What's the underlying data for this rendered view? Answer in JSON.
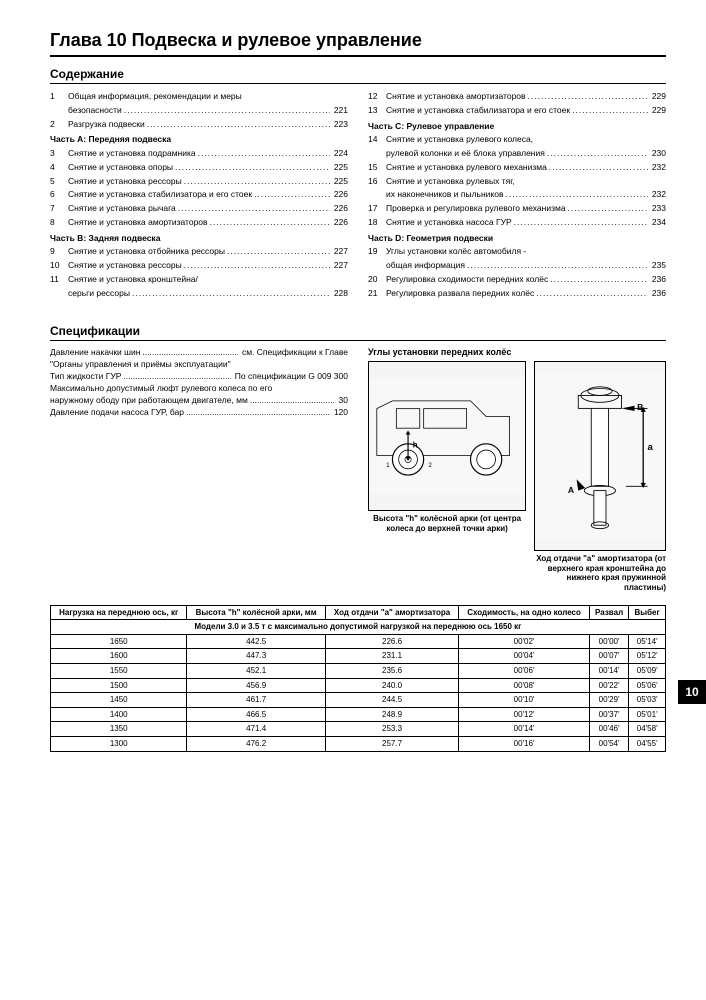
{
  "title": "Глава 10 Подвеска и рулевое управление",
  "contents_heading": "Содержание",
  "spec_heading": "Спецификации",
  "chapter_tab": "10",
  "toc_left": [
    {
      "n": "1",
      "t": "Общая информация, рекомендации и меры",
      "noline": true
    },
    {
      "n": "",
      "t": "безопасности",
      "p": "221"
    },
    {
      "n": "2",
      "t": "Разгрузка подвески",
      "p": "223"
    },
    {
      "part": "Часть A: Передняя подвеска"
    },
    {
      "n": "3",
      "t": "Снятие и установка подрамника",
      "p": "224"
    },
    {
      "n": "4",
      "t": "Снятие и установка опоры",
      "p": "225"
    },
    {
      "n": "5",
      "t": "Снятие и установка рессоры",
      "p": "225"
    },
    {
      "n": "6",
      "t": "Снятие и установка стабилизатора и его стоек",
      "p": "226"
    },
    {
      "n": "7",
      "t": "Снятие и установка рычага",
      "p": "226"
    },
    {
      "n": "8",
      "t": "Снятие и установка амортизаторов",
      "p": "226"
    },
    {
      "part": "Часть B: Задняя подвеска"
    },
    {
      "n": "9",
      "t": "Снятие и установка отбойника рессоры",
      "p": "227"
    },
    {
      "n": "10",
      "t": "Снятие и установка рессоры",
      "p": "227"
    },
    {
      "n": "11",
      "t": "Снятие и установка кронштейна/",
      "noline": true
    },
    {
      "n": "",
      "t": "серьги рессоры",
      "p": "228"
    }
  ],
  "toc_right": [
    {
      "n": "12",
      "t": "Снятие и установка амортизаторов",
      "p": "229"
    },
    {
      "n": "13",
      "t": "Снятие и установка стабилизатора и его стоек",
      "p": "229"
    },
    {
      "part": "Часть C: Рулевое управление"
    },
    {
      "n": "14",
      "t": "Снятие и установка рулевого колеса,",
      "noline": true
    },
    {
      "n": "",
      "t": "рулевой колонки и её блока управления",
      "p": "230"
    },
    {
      "n": "15",
      "t": "Снятие и установка рулевого механизма",
      "p": "232"
    },
    {
      "n": "16",
      "t": "Снятие и установка рулевых тяг,",
      "noline": true
    },
    {
      "n": "",
      "t": "их наконечников и пыльников",
      "p": "232"
    },
    {
      "n": "17",
      "t": "Проверка и регулировка рулевого механизма",
      "p": "233"
    },
    {
      "n": "18",
      "t": "Снятие и установка насоса ГУР",
      "p": "234"
    },
    {
      "part": "Часть D: Геометрия подвески"
    },
    {
      "n": "19",
      "t": "Углы установки колёс автомобиля -",
      "noline": true
    },
    {
      "n": "",
      "t": "общая информация",
      "p": "235"
    },
    {
      "n": "20",
      "t": "Регулировка сходимости передних колёс",
      "p": "236"
    },
    {
      "n": "21",
      "t": "Регулировка развала передних колёс",
      "p": "236"
    }
  ],
  "spec_lines": [
    {
      "l": "Давление накачки шин",
      "v": "см. Спецификации к Главе"
    },
    {
      "plain": "                    \"Органы управления и приёмы эксплуатации\""
    },
    {
      "l": "Тип жидкости ГУР",
      "v": "По спецификации G 009 300"
    },
    {
      "plain": "Максимально допустимый люфт рулевого колеса по его"
    },
    {
      "l": "наружному ободу при работающем двигателе, мм",
      "v": "30"
    },
    {
      "l": "Давление подачи насоса ГУР, бар",
      "v": "120"
    }
  ],
  "fig1_title": "Углы установки передних колёс",
  "fig1_caption": "Высота \"h\" колёсной арки (от центра колеса до верхней точки арки)",
  "fig2_caption": "Ход отдачи \"a\" амортизатора (от верхнего края кронштейна до нижнего края пружинной пластины)",
  "table": {
    "columns": [
      "Нагрузка на переднюю ось, кг",
      "Высота \"h\" колёсной арки, мм",
      "Ход отдачи \"a\" амортизатора",
      "Сходимость, на одно колесо",
      "Развал",
      "Выбег"
    ],
    "subheader": "Модели 3.0 и 3.5 т с максимально допустимой нагрузкой на переднюю ось 1650 кг",
    "rows": [
      [
        "1650",
        "442.5",
        "226.6",
        "00'02'",
        "00'00'",
        "05'14'"
      ],
      [
        "1600",
        "447.3",
        "231.1",
        "00'04'",
        "00'07'",
        "05'12'"
      ],
      [
        "1550",
        "452.1",
        "235.6",
        "00'06'",
        "00'14'",
        "05'09'"
      ],
      [
        "1500",
        "456.9",
        "240.0",
        "00'08'",
        "00'22'",
        "05'06'"
      ],
      [
        "1450",
        "461.7",
        "244.5",
        "00'10'",
        "00'29'",
        "05'03'"
      ],
      [
        "1400",
        "466.5",
        "248.9",
        "00'12'",
        "00'37'",
        "05'01'"
      ],
      [
        "1350",
        "471.4",
        "253.3",
        "00'14'",
        "00'46'",
        "04'58'"
      ],
      [
        "1300",
        "476.2",
        "257.7",
        "00'16'",
        "00'54'",
        "04'55'"
      ]
    ]
  }
}
